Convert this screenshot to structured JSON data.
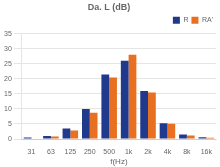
{
  "chart_data": {
    "type": "bar",
    "title": "Da. L (dB)",
    "xlabel": "f(Hz)",
    "categories": [
      "31",
      "63",
      "125",
      "250",
      "500",
      "1k",
      "2k",
      "4k",
      "8k",
      "16k"
    ],
    "series": [
      {
        "name": "R",
        "color": "#1F3A8C",
        "values": [
          0.5,
          1.0,
          3.5,
          10.0,
          21.5,
          26.0,
          16.0,
          5.2,
          1.5,
          0.6
        ]
      },
      {
        "name": "RA'",
        "color": "#E87020",
        "values": [
          0.2,
          0.8,
          2.8,
          8.7,
          20.5,
          28.0,
          15.5,
          5.1,
          1.2,
          0.4
        ]
      }
    ],
    "ylim": [
      0,
      35
    ],
    "yticks": [
      0,
      5,
      10,
      15,
      20,
      25,
      30,
      35
    ],
    "grid": true,
    "legend": "upper right"
  }
}
